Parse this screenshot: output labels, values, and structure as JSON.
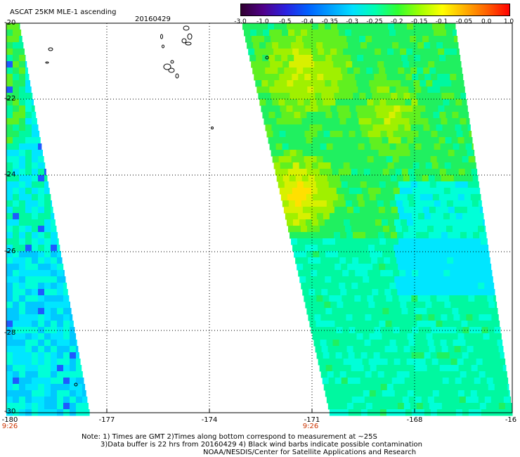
{
  "header": {
    "title": "ASCAT 25KM MLE-1 ascending",
    "date": "20160429"
  },
  "colorbar": {
    "ticks": [
      "-3.0",
      "-1.0",
      "-0.5",
      "-0.4",
      "-0.35",
      "-0.3",
      "-0.25",
      "-0.2",
      "-0.15",
      "-0.1",
      "-0.05",
      "0.0",
      "1.0"
    ],
    "colors": [
      "#300030",
      "#50008a",
      "#2a20e0",
      "#0060ff",
      "#00a0ff",
      "#00e0ff",
      "#00ffb0",
      "#30ff30",
      "#a0ff00",
      "#ffff00",
      "#ffb000",
      "#ff6000",
      "#ff0000"
    ]
  },
  "axes": {
    "lat_labels": [
      "-20",
      "-22",
      "-24",
      "-26",
      "-28",
      "-30"
    ],
    "lon_labels": [
      "-180",
      "-177",
      "-174",
      "-171",
      "-168",
      "-16"
    ]
  },
  "times": [
    "9:26",
    "9:26"
  ],
  "notes": {
    "line1": "Note: 1) Times are GMT 2)Times along bottom correspond to measurement at ~25S",
    "line2": "3)Data buffer is 22 hrs from 20160429 4) Black wind barbs indicate possible contamination",
    "line3": "NOAA/NESDIS/Center for Satellite Applications and Research"
  }
}
